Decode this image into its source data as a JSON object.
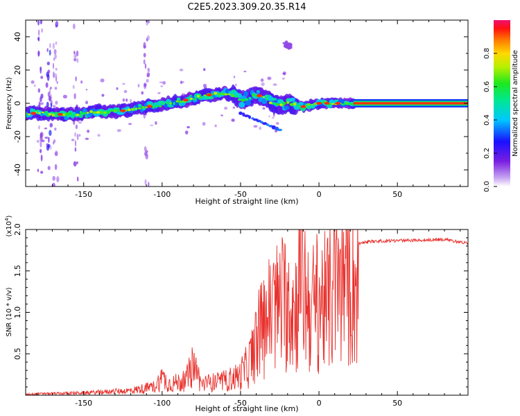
{
  "title": "C2E5.2023.309.20.35.R14",
  "colors": {
    "snr_line": "#e8302c",
    "frame": "#000000",
    "background": "#ffffff"
  },
  "chart_data": [
    {
      "type": "heatmap",
      "xlabel": "Height of straight line (km)",
      "ylabel": "Frequency (Hz)",
      "xlim": [
        -187,
        95
      ],
      "ylim": [
        -50,
        50
      ],
      "x_ticks": [
        -150,
        -100,
        -50,
        0,
        50
      ],
      "y_ticks": [
        -40,
        -20,
        0,
        20,
        40
      ],
      "colorbar": {
        "label": "Normalized spectral amplitude",
        "range": [
          0,
          1
        ],
        "ticks": [
          "0.0",
          "0.2",
          "0.4",
          "0.6",
          "0.8"
        ],
        "tick_values": [
          0,
          0.2,
          0.4,
          0.6,
          0.8
        ],
        "colormap": "rainbow (white/purple low → red/magenta high)"
      },
      "ridge": {
        "description": "dominant frequency ridge vs height",
        "points": [
          [
            -187,
            -6
          ],
          [
            -175,
            -6
          ],
          [
            -160,
            -7
          ],
          [
            -150,
            -6
          ],
          [
            -140,
            -5
          ],
          [
            -130,
            -5
          ],
          [
            -120,
            -4
          ],
          [
            -110,
            -2
          ],
          [
            -100,
            -1
          ],
          [
            -90,
            1
          ],
          [
            -80,
            3
          ],
          [
            -70,
            5
          ],
          [
            -60,
            6
          ],
          [
            -55,
            5
          ],
          [
            -50,
            2
          ],
          [
            -45,
            3
          ],
          [
            -40,
            5
          ],
          [
            -35,
            4
          ],
          [
            -30,
            0
          ],
          [
            -25,
            -1
          ],
          [
            -20,
            0
          ],
          [
            -15,
            -1
          ],
          [
            -10,
            -2
          ],
          [
            -5,
            -1
          ],
          [
            0,
            0
          ],
          [
            10,
            0
          ],
          [
            20,
            0
          ],
          [
            95,
            0
          ]
        ]
      },
      "secondary_features": [
        {
          "x_range": [
            -50,
            -25
          ],
          "y_range": [
            -16,
            -6
          ],
          "description": "lower branch"
        },
        {
          "x_range": [
            -22,
            -18
          ],
          "y_range": [
            33,
            37
          ],
          "description": "isolated high-frequency spot"
        }
      ]
    },
    {
      "type": "line",
      "xlabel": "Height of straight line (km)",
      "ylabel": "SNR (10 * v/v)",
      "y_multiplier": "(x10^4)",
      "xlim": [
        -187,
        95
      ],
      "ylim": [
        0,
        2.0
      ],
      "x_ticks": [
        -150,
        -100,
        -50,
        0,
        50
      ],
      "y_ticks": [
        0.5,
        1.0,
        1.5,
        2.0
      ],
      "series": [
        {
          "values_envelope": [
            [
              -187,
              0.02
            ],
            [
              -150,
              0.04
            ],
            [
              -120,
              0.08
            ],
            [
              -105,
              0.15
            ],
            [
              -100,
              0.3
            ],
            [
              -95,
              0.2
            ],
            [
              -85,
              0.25
            ],
            [
              -80,
              0.55
            ],
            [
              -75,
              0.2
            ],
            [
              -60,
              0.25
            ],
            [
              -50,
              0.35
            ],
            [
              -45,
              0.5
            ],
            [
              -40,
              0.9
            ],
            [
              -35,
              1.2
            ],
            [
              -30,
              1.4
            ],
            [
              -25,
              1.5
            ],
            [
              -20,
              1.6
            ],
            [
              -15,
              1.4
            ],
            [
              -12,
              2.0
            ],
            [
              -5,
              1.4
            ],
            [
              0,
              1.6
            ],
            [
              5,
              1.5
            ],
            [
              10,
              1.8
            ],
            [
              15,
              1.85
            ],
            [
              20,
              1.8
            ],
            [
              25,
              1.85
            ],
            [
              30,
              1.87
            ],
            [
              40,
              1.88
            ],
            [
              60,
              1.89
            ],
            [
              80,
              1.9
            ],
            [
              95,
              1.85
            ]
          ]
        }
      ]
    }
  ]
}
